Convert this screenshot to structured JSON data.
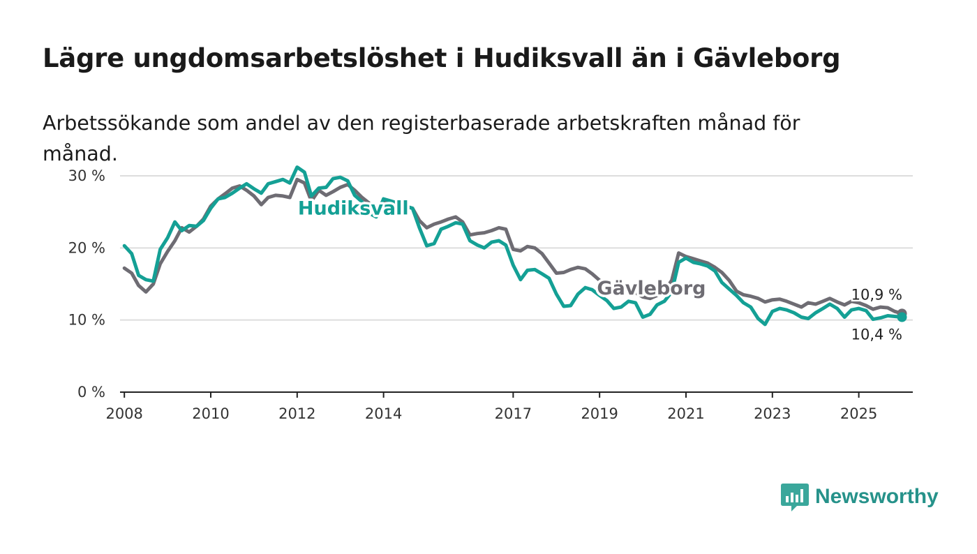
{
  "title": "Lägre ungdomsarbetslöshet i Hudiksvall än i Gävleborg",
  "subtitle": "Arbetssökande som andel av den registerbaserade arbetskraften månad för månad.",
  "brand": {
    "name": "Newsworthy",
    "icon": "newsworthy-logo-icon",
    "color": "#3aa79b"
  },
  "chart_data": {
    "type": "line",
    "title": "Lägre ungdomsarbetslöshet i Hudiksvall än i Gävleborg",
    "xlabel": "",
    "ylabel": "",
    "xlim": [
      2007.9,
      2026.25
    ],
    "ylim": [
      0,
      30
    ],
    "y_ticks": [
      0,
      10,
      20,
      30
    ],
    "y_tick_labels": [
      "0 %",
      "10 %",
      "20 %",
      "30 %"
    ],
    "x_ticks": [
      2008,
      2010,
      2012,
      2014,
      2017,
      2019,
      2021,
      2023,
      2025
    ],
    "x_tick_labels": [
      "2008",
      "2010",
      "2012",
      "2014",
      "2017",
      "2019",
      "2021",
      "2023",
      "2025"
    ],
    "grid": true,
    "legend": "inline labels",
    "series": [
      {
        "name": "Gävleborg",
        "color": "#6e6c73",
        "label_year": 2020.2,
        "label_value": 14.5,
        "end_label": "10,9 %",
        "points": [
          [
            2008.0,
            17.2
          ],
          [
            2008.17,
            16.5
          ],
          [
            2008.33,
            14.8
          ],
          [
            2008.5,
            13.9
          ],
          [
            2008.67,
            15.0
          ],
          [
            2008.83,
            17.8
          ],
          [
            2009.0,
            19.5
          ],
          [
            2009.17,
            21.0
          ],
          [
            2009.33,
            22.8
          ],
          [
            2009.5,
            22.2
          ],
          [
            2009.67,
            23.0
          ],
          [
            2009.83,
            24.0
          ],
          [
            2010.0,
            25.8
          ],
          [
            2010.17,
            26.8
          ],
          [
            2010.33,
            27.5
          ],
          [
            2010.5,
            28.3
          ],
          [
            2010.67,
            28.6
          ],
          [
            2010.83,
            28.0
          ],
          [
            2011.0,
            27.2
          ],
          [
            2011.17,
            26.0
          ],
          [
            2011.33,
            27.0
          ],
          [
            2011.5,
            27.3
          ],
          [
            2011.67,
            27.2
          ],
          [
            2011.83,
            27.0
          ],
          [
            2012.0,
            29.5
          ],
          [
            2012.17,
            29.0
          ],
          [
            2012.33,
            26.5
          ],
          [
            2012.5,
            28.0
          ],
          [
            2012.67,
            27.3
          ],
          [
            2012.83,
            27.8
          ],
          [
            2013.0,
            28.4
          ],
          [
            2013.17,
            28.8
          ],
          [
            2013.33,
            28.0
          ],
          [
            2013.5,
            27.0
          ],
          [
            2013.67,
            26.2
          ],
          [
            2013.83,
            25.2
          ],
          [
            2014.0,
            26.6
          ],
          [
            2014.17,
            26.4
          ],
          [
            2014.33,
            26.2
          ],
          [
            2014.5,
            25.8
          ],
          [
            2014.67,
            25.5
          ],
          [
            2014.83,
            23.8
          ],
          [
            2015.0,
            22.8
          ],
          [
            2015.17,
            23.3
          ],
          [
            2015.33,
            23.6
          ],
          [
            2015.5,
            24.0
          ],
          [
            2015.67,
            24.3
          ],
          [
            2015.83,
            23.6
          ],
          [
            2016.0,
            21.8
          ],
          [
            2016.17,
            22.0
          ],
          [
            2016.33,
            22.1
          ],
          [
            2016.5,
            22.4
          ],
          [
            2016.67,
            22.8
          ],
          [
            2016.83,
            22.6
          ],
          [
            2017.0,
            19.8
          ],
          [
            2017.17,
            19.6
          ],
          [
            2017.33,
            20.2
          ],
          [
            2017.5,
            20.0
          ],
          [
            2017.67,
            19.2
          ],
          [
            2017.83,
            17.9
          ],
          [
            2018.0,
            16.5
          ],
          [
            2018.17,
            16.6
          ],
          [
            2018.33,
            17.0
          ],
          [
            2018.5,
            17.3
          ],
          [
            2018.67,
            17.1
          ],
          [
            2018.83,
            16.4
          ],
          [
            2019.0,
            15.5
          ],
          [
            2019.17,
            14.5
          ],
          [
            2019.33,
            14.0
          ],
          [
            2019.5,
            14.0
          ],
          [
            2019.67,
            14.4
          ],
          [
            2019.83,
            13.8
          ],
          [
            2020.0,
            13.2
          ],
          [
            2020.17,
            13.0
          ],
          [
            2020.33,
            13.4
          ],
          [
            2020.5,
            14.0
          ],
          [
            2020.67,
            15.5
          ],
          [
            2020.83,
            19.3
          ],
          [
            2021.0,
            18.8
          ],
          [
            2021.17,
            18.5
          ],
          [
            2021.33,
            18.2
          ],
          [
            2021.5,
            17.9
          ],
          [
            2021.67,
            17.3
          ],
          [
            2021.83,
            16.6
          ],
          [
            2022.0,
            15.5
          ],
          [
            2022.17,
            14.0
          ],
          [
            2022.33,
            13.5
          ],
          [
            2022.5,
            13.3
          ],
          [
            2022.67,
            13.0
          ],
          [
            2022.83,
            12.5
          ],
          [
            2023.0,
            12.8
          ],
          [
            2023.17,
            12.9
          ],
          [
            2023.33,
            12.6
          ],
          [
            2023.5,
            12.2
          ],
          [
            2023.67,
            11.8
          ],
          [
            2023.83,
            12.4
          ],
          [
            2024.0,
            12.2
          ],
          [
            2024.17,
            12.6
          ],
          [
            2024.33,
            13.0
          ],
          [
            2024.5,
            12.5
          ],
          [
            2024.67,
            12.1
          ],
          [
            2024.83,
            12.6
          ],
          [
            2025.0,
            12.4
          ],
          [
            2025.17,
            12.0
          ],
          [
            2025.33,
            11.5
          ],
          [
            2025.5,
            11.8
          ],
          [
            2025.67,
            11.7
          ],
          [
            2025.83,
            11.2
          ],
          [
            2026.0,
            10.9
          ]
        ]
      },
      {
        "name": "Hudiksvall",
        "color": "#14a095",
        "label_year": 2013.3,
        "label_value": 25.6,
        "end_label": "10,4 %",
        "points": [
          [
            2008.0,
            20.3
          ],
          [
            2008.17,
            19.2
          ],
          [
            2008.33,
            16.2
          ],
          [
            2008.5,
            15.6
          ],
          [
            2008.67,
            15.4
          ],
          [
            2008.83,
            19.8
          ],
          [
            2009.0,
            21.4
          ],
          [
            2009.17,
            23.6
          ],
          [
            2009.33,
            22.4
          ],
          [
            2009.5,
            23.1
          ],
          [
            2009.67,
            23.0
          ],
          [
            2009.83,
            23.8
          ],
          [
            2010.0,
            25.5
          ],
          [
            2010.17,
            26.8
          ],
          [
            2010.33,
            27.0
          ],
          [
            2010.5,
            27.6
          ],
          [
            2010.67,
            28.3
          ],
          [
            2010.83,
            28.9
          ],
          [
            2011.0,
            28.2
          ],
          [
            2011.17,
            27.6
          ],
          [
            2011.33,
            28.9
          ],
          [
            2011.5,
            29.2
          ],
          [
            2011.67,
            29.5
          ],
          [
            2011.83,
            29.0
          ],
          [
            2012.0,
            31.2
          ],
          [
            2012.17,
            30.5
          ],
          [
            2012.33,
            27.2
          ],
          [
            2012.5,
            28.3
          ],
          [
            2012.67,
            28.4
          ],
          [
            2012.83,
            29.6
          ],
          [
            2013.0,
            29.8
          ],
          [
            2013.17,
            29.3
          ],
          [
            2013.33,
            27.3
          ],
          [
            2013.5,
            26.4
          ],
          [
            2013.67,
            24.8
          ],
          [
            2013.83,
            24.3
          ],
          [
            2014.0,
            26.8
          ],
          [
            2014.17,
            26.5
          ],
          [
            2014.33,
            26.2
          ],
          [
            2014.5,
            25.8
          ],
          [
            2014.67,
            25.5
          ],
          [
            2014.83,
            22.8
          ],
          [
            2015.0,
            20.3
          ],
          [
            2015.17,
            20.6
          ],
          [
            2015.33,
            22.6
          ],
          [
            2015.5,
            23.0
          ],
          [
            2015.67,
            23.5
          ],
          [
            2015.83,
            23.3
          ],
          [
            2016.0,
            21.0
          ],
          [
            2016.17,
            20.4
          ],
          [
            2016.33,
            20.0
          ],
          [
            2016.5,
            20.8
          ],
          [
            2016.67,
            21.0
          ],
          [
            2016.83,
            20.4
          ],
          [
            2017.0,
            17.6
          ],
          [
            2017.17,
            15.6
          ],
          [
            2017.33,
            16.9
          ],
          [
            2017.5,
            17.0
          ],
          [
            2017.67,
            16.4
          ],
          [
            2017.83,
            15.8
          ],
          [
            2018.0,
            13.6
          ],
          [
            2018.17,
            11.9
          ],
          [
            2018.33,
            12.0
          ],
          [
            2018.5,
            13.6
          ],
          [
            2018.67,
            14.5
          ],
          [
            2018.83,
            14.2
          ],
          [
            2019.0,
            13.4
          ],
          [
            2019.17,
            12.7
          ],
          [
            2019.33,
            11.6
          ],
          [
            2019.5,
            11.8
          ],
          [
            2019.67,
            12.6
          ],
          [
            2019.83,
            12.4
          ],
          [
            2020.0,
            10.4
          ],
          [
            2020.17,
            10.8
          ],
          [
            2020.33,
            12.1
          ],
          [
            2020.5,
            12.6
          ],
          [
            2020.67,
            13.9
          ],
          [
            2020.83,
            18.0
          ],
          [
            2021.0,
            18.6
          ],
          [
            2021.17,
            18.0
          ],
          [
            2021.33,
            17.8
          ],
          [
            2021.5,
            17.5
          ],
          [
            2021.67,
            16.8
          ],
          [
            2021.83,
            15.2
          ],
          [
            2022.0,
            14.3
          ],
          [
            2022.17,
            13.4
          ],
          [
            2022.33,
            12.4
          ],
          [
            2022.5,
            11.8
          ],
          [
            2022.67,
            10.2
          ],
          [
            2022.83,
            9.4
          ],
          [
            2023.0,
            11.2
          ],
          [
            2023.17,
            11.6
          ],
          [
            2023.33,
            11.4
          ],
          [
            2023.5,
            11.0
          ],
          [
            2023.67,
            10.4
          ],
          [
            2023.83,
            10.2
          ],
          [
            2024.0,
            11.0
          ],
          [
            2024.17,
            11.6
          ],
          [
            2024.33,
            12.2
          ],
          [
            2024.5,
            11.6
          ],
          [
            2024.67,
            10.4
          ],
          [
            2024.83,
            11.4
          ],
          [
            2025.0,
            11.6
          ],
          [
            2025.17,
            11.3
          ],
          [
            2025.33,
            10.1
          ],
          [
            2025.5,
            10.3
          ],
          [
            2025.67,
            10.6
          ],
          [
            2025.83,
            10.5
          ],
          [
            2026.0,
            10.4
          ]
        ]
      }
    ]
  }
}
